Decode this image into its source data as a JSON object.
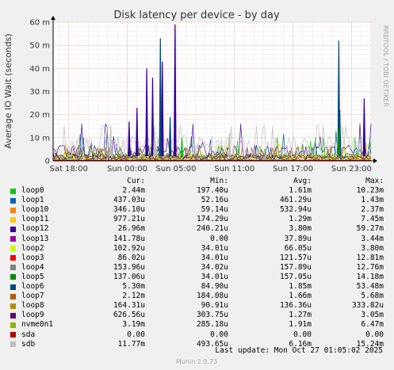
{
  "chart_data": {
    "type": "line",
    "title": "Disk latency per device - by day",
    "ylabel": "Average IO Wait (seconds)",
    "ylim": [
      0,
      0.06
    ],
    "y_ticks": [
      "0",
      "10 m",
      "20 m",
      "30 m",
      "40 m",
      "50 m",
      "60 m"
    ],
    "y_tick_values": [
      0,
      0.01,
      0.02,
      0.03,
      0.04,
      0.05,
      0.06
    ],
    "x_ticks": [
      "Sat 18:00",
      "Sun 00:00",
      "Sun 05:00",
      "Sun 11:00",
      "Sun 17:00",
      "Sun 23:00"
    ],
    "x_tick_hours": [
      0,
      6,
      11,
      17,
      23,
      29
    ],
    "x_range_hours": [
      -1.6,
      31
    ],
    "grid": true,
    "watermark": "RRDTOOL / TOBI OETIKER",
    "footer": "Munin 2.0.73",
    "series": [
      {
        "name": "loop0",
        "color": "#00cc00",
        "cur": "2.44m",
        "min": "197.40u",
        "avg": "1.61m",
        "max": "10.23m"
      },
      {
        "name": "loop1",
        "color": "#0066b3",
        "cur": "437.03u",
        "min": "52.16u",
        "avg": "461.29u",
        "max": "1.43m"
      },
      {
        "name": "loop10",
        "color": "#ff8000",
        "cur": "346.10u",
        "min": "59.14u",
        "avg": "532.94u",
        "max": "2.37m"
      },
      {
        "name": "loop11",
        "color": "#ffcc00",
        "cur": "977.21u",
        "min": "174.29u",
        "avg": "1.29m",
        "max": "7.45m"
      },
      {
        "name": "loop12",
        "color": "#330099",
        "cur": "26.96m",
        "min": "240.21u",
        "avg": "3.80m",
        "max": "59.27m"
      },
      {
        "name": "loop13",
        "color": "#990099",
        "cur": "141.78u",
        "min": "0.00",
        "avg": "37.89u",
        "max": "3.44m"
      },
      {
        "name": "loop2",
        "color": "#ccff00",
        "cur": "102.92u",
        "min": "34.01u",
        "avg": "66.05u",
        "max": "3.80m"
      },
      {
        "name": "loop3",
        "color": "#ff0000",
        "cur": "86.02u",
        "min": "34.01u",
        "avg": "121.57u",
        "max": "12.81m"
      },
      {
        "name": "loop4",
        "color": "#808080",
        "cur": "153.96u",
        "min": "34.02u",
        "avg": "157.89u",
        "max": "12.76m"
      },
      {
        "name": "loop5",
        "color": "#008f00",
        "cur": "137.06u",
        "min": "34.01u",
        "avg": "157.05u",
        "max": "14.18m"
      },
      {
        "name": "loop6",
        "color": "#00487d",
        "cur": "5.30m",
        "min": "84.90u",
        "avg": "1.85m",
        "max": "53.48m"
      },
      {
        "name": "loop7",
        "color": "#b35a00",
        "cur": "2.12m",
        "min": "184.08u",
        "avg": "1.66m",
        "max": "5.68m"
      },
      {
        "name": "loop8",
        "color": "#b38f00",
        "cur": "164.31u",
        "min": "90.91u",
        "avg": "136.36u",
        "max": "333.82u"
      },
      {
        "name": "loop9",
        "color": "#6b006b",
        "cur": "626.56u",
        "min": "303.75u",
        "avg": "1.27m",
        "max": "3.05m"
      },
      {
        "name": "nvme0n1",
        "color": "#8fb300",
        "cur": "3.19m",
        "min": "285.18u",
        "avg": "1.91m",
        "max": "6.47m"
      },
      {
        "name": "sda",
        "color": "#b30000",
        "cur": "0.00",
        "min": "0.00",
        "avg": "0.00",
        "max": "0.00"
      },
      {
        "name": "sdb",
        "color": "#bebebe",
        "cur": "11.77m",
        "min": "493.65u",
        "avg": "6.16m",
        "max": "15.24m"
      }
    ],
    "spikes": [
      {
        "series": "loop12",
        "x_hours": 10.9,
        "y": 0.059
      },
      {
        "series": "loop12",
        "x_hours": 9.6,
        "y": 0.043
      },
      {
        "series": "loop12",
        "x_hours": 8.0,
        "y": 0.04
      },
      {
        "series": "loop12",
        "x_hours": 8.6,
        "y": 0.036
      },
      {
        "series": "loop12",
        "x_hours": 7.0,
        "y": 0.023
      },
      {
        "series": "loop12",
        "x_hours": 30.3,
        "y": 0.027
      },
      {
        "series": "loop12",
        "x_hours": 6.2,
        "y": 0.017
      },
      {
        "series": "loop6",
        "x_hours": 9.4,
        "y": 0.053
      },
      {
        "series": "loop6",
        "x_hours": 27.7,
        "y": 0.052
      },
      {
        "series": "loop6",
        "x_hours": 10.4,
        "y": 0.019
      },
      {
        "series": "loop6",
        "x_hours": 27.8,
        "y": 0.022
      },
      {
        "series": "sdb",
        "x_hours": 4.3,
        "y": 0.015
      },
      {
        "series": "sdb",
        "x_hours": 8.8,
        "y": 0.015
      },
      {
        "series": "sdb",
        "x_hours": 16.5,
        "y": 0.012
      },
      {
        "series": "loop5",
        "x_hours": 27.7,
        "y": 0.014
      },
      {
        "series": "loop0",
        "x_hours": 11.6,
        "y": 0.01
      }
    ]
  },
  "legend_header": {
    "cur": "Cur:",
    "min": "Min:",
    "avg": "Avg:",
    "max": "Max:"
  },
  "last_update": "Last update: Mon Oct 27 01:05:02 2025"
}
